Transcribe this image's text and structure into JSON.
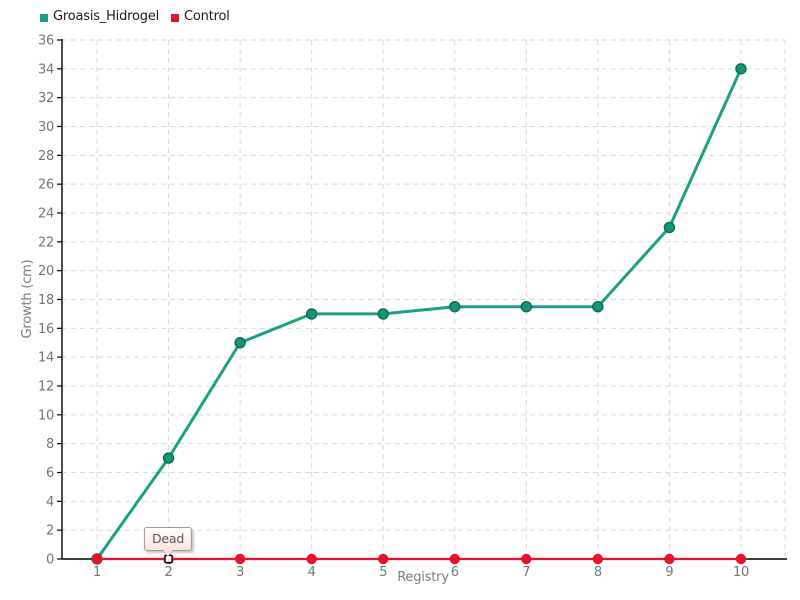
{
  "legend": {
    "items": [
      {
        "label": "Groasis_Hidrogel",
        "color": "#1ca084"
      },
      {
        "label": "Control",
        "color": "#e8132b"
      }
    ]
  },
  "chart_data": {
    "type": "line",
    "categories": [
      "1",
      "2",
      "3",
      "4",
      "5",
      "6",
      "7",
      "8",
      "9",
      "10"
    ],
    "series": [
      {
        "name": "Groasis_Hidrogel",
        "color": "#1ca084",
        "marker_fill": "#189579",
        "marker_stroke": "#0c6b55",
        "marker_radius": 5,
        "line_width": 3,
        "values": [
          0,
          7,
          15,
          17,
          17,
          17.5,
          17.5,
          17.5,
          23,
          34
        ]
      },
      {
        "name": "Control",
        "color": "#e8132b",
        "marker_fill": "#e8132b",
        "marker_stroke": "#e8132b",
        "marker_radius": 4.5,
        "line_width": 2.2,
        "values": [
          0,
          0,
          0,
          0,
          0,
          0,
          0,
          0,
          0,
          0
        ]
      }
    ],
    "xlabel": "Registry",
    "ylabel": "Growth (cm)",
    "ylim": [
      0,
      36
    ],
    "y_tick_step": 2,
    "y_ticks": [
      "0",
      "2",
      "4",
      "6",
      "8",
      "10",
      "12",
      "14",
      "16",
      "18",
      "20",
      "22",
      "24",
      "26",
      "28",
      "30",
      "32",
      "34",
      "36"
    ],
    "grid": true,
    "legend_position": "top-left",
    "annotations": [
      {
        "text": "Dead",
        "series": "Control",
        "category": "2",
        "value": 0
      }
    ]
  }
}
